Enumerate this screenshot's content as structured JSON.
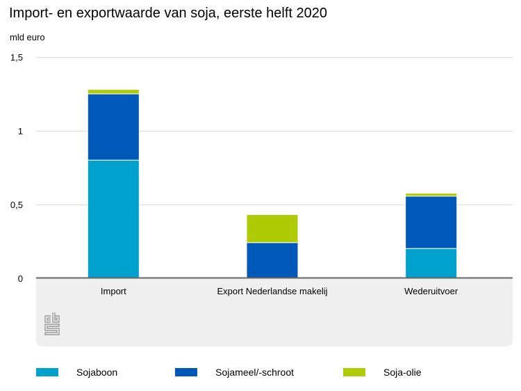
{
  "chart_data": {
    "type": "bar",
    "stacked": true,
    "title": "Import- en exportwaarde van soja, eerste helft 2020",
    "ylabel": "mld euro",
    "xlabel": "",
    "ylim": [
      0,
      1.5
    ],
    "yticks": [
      0,
      0.5,
      1,
      1.5
    ],
    "ytick_labels": [
      "0",
      "0,5",
      "1",
      "1,5"
    ],
    "grid": true,
    "legend_position": "bottom-left",
    "categories": [
      "Import",
      "Export Nederlandse makelij",
      "Wederuitvoer"
    ],
    "series": [
      {
        "name": "Sojaboon",
        "color": "#00a1cd",
        "values": [
          0.8,
          0.0,
          0.2
        ]
      },
      {
        "name": "Sojameel/-schroot",
        "color": "#0058b8",
        "values": [
          0.45,
          0.24,
          0.355
        ]
      },
      {
        "name": "Soja-olie",
        "color": "#afcb05",
        "values": [
          0.03,
          0.19,
          0.02
        ]
      }
    ]
  },
  "logo_text": "cbs"
}
